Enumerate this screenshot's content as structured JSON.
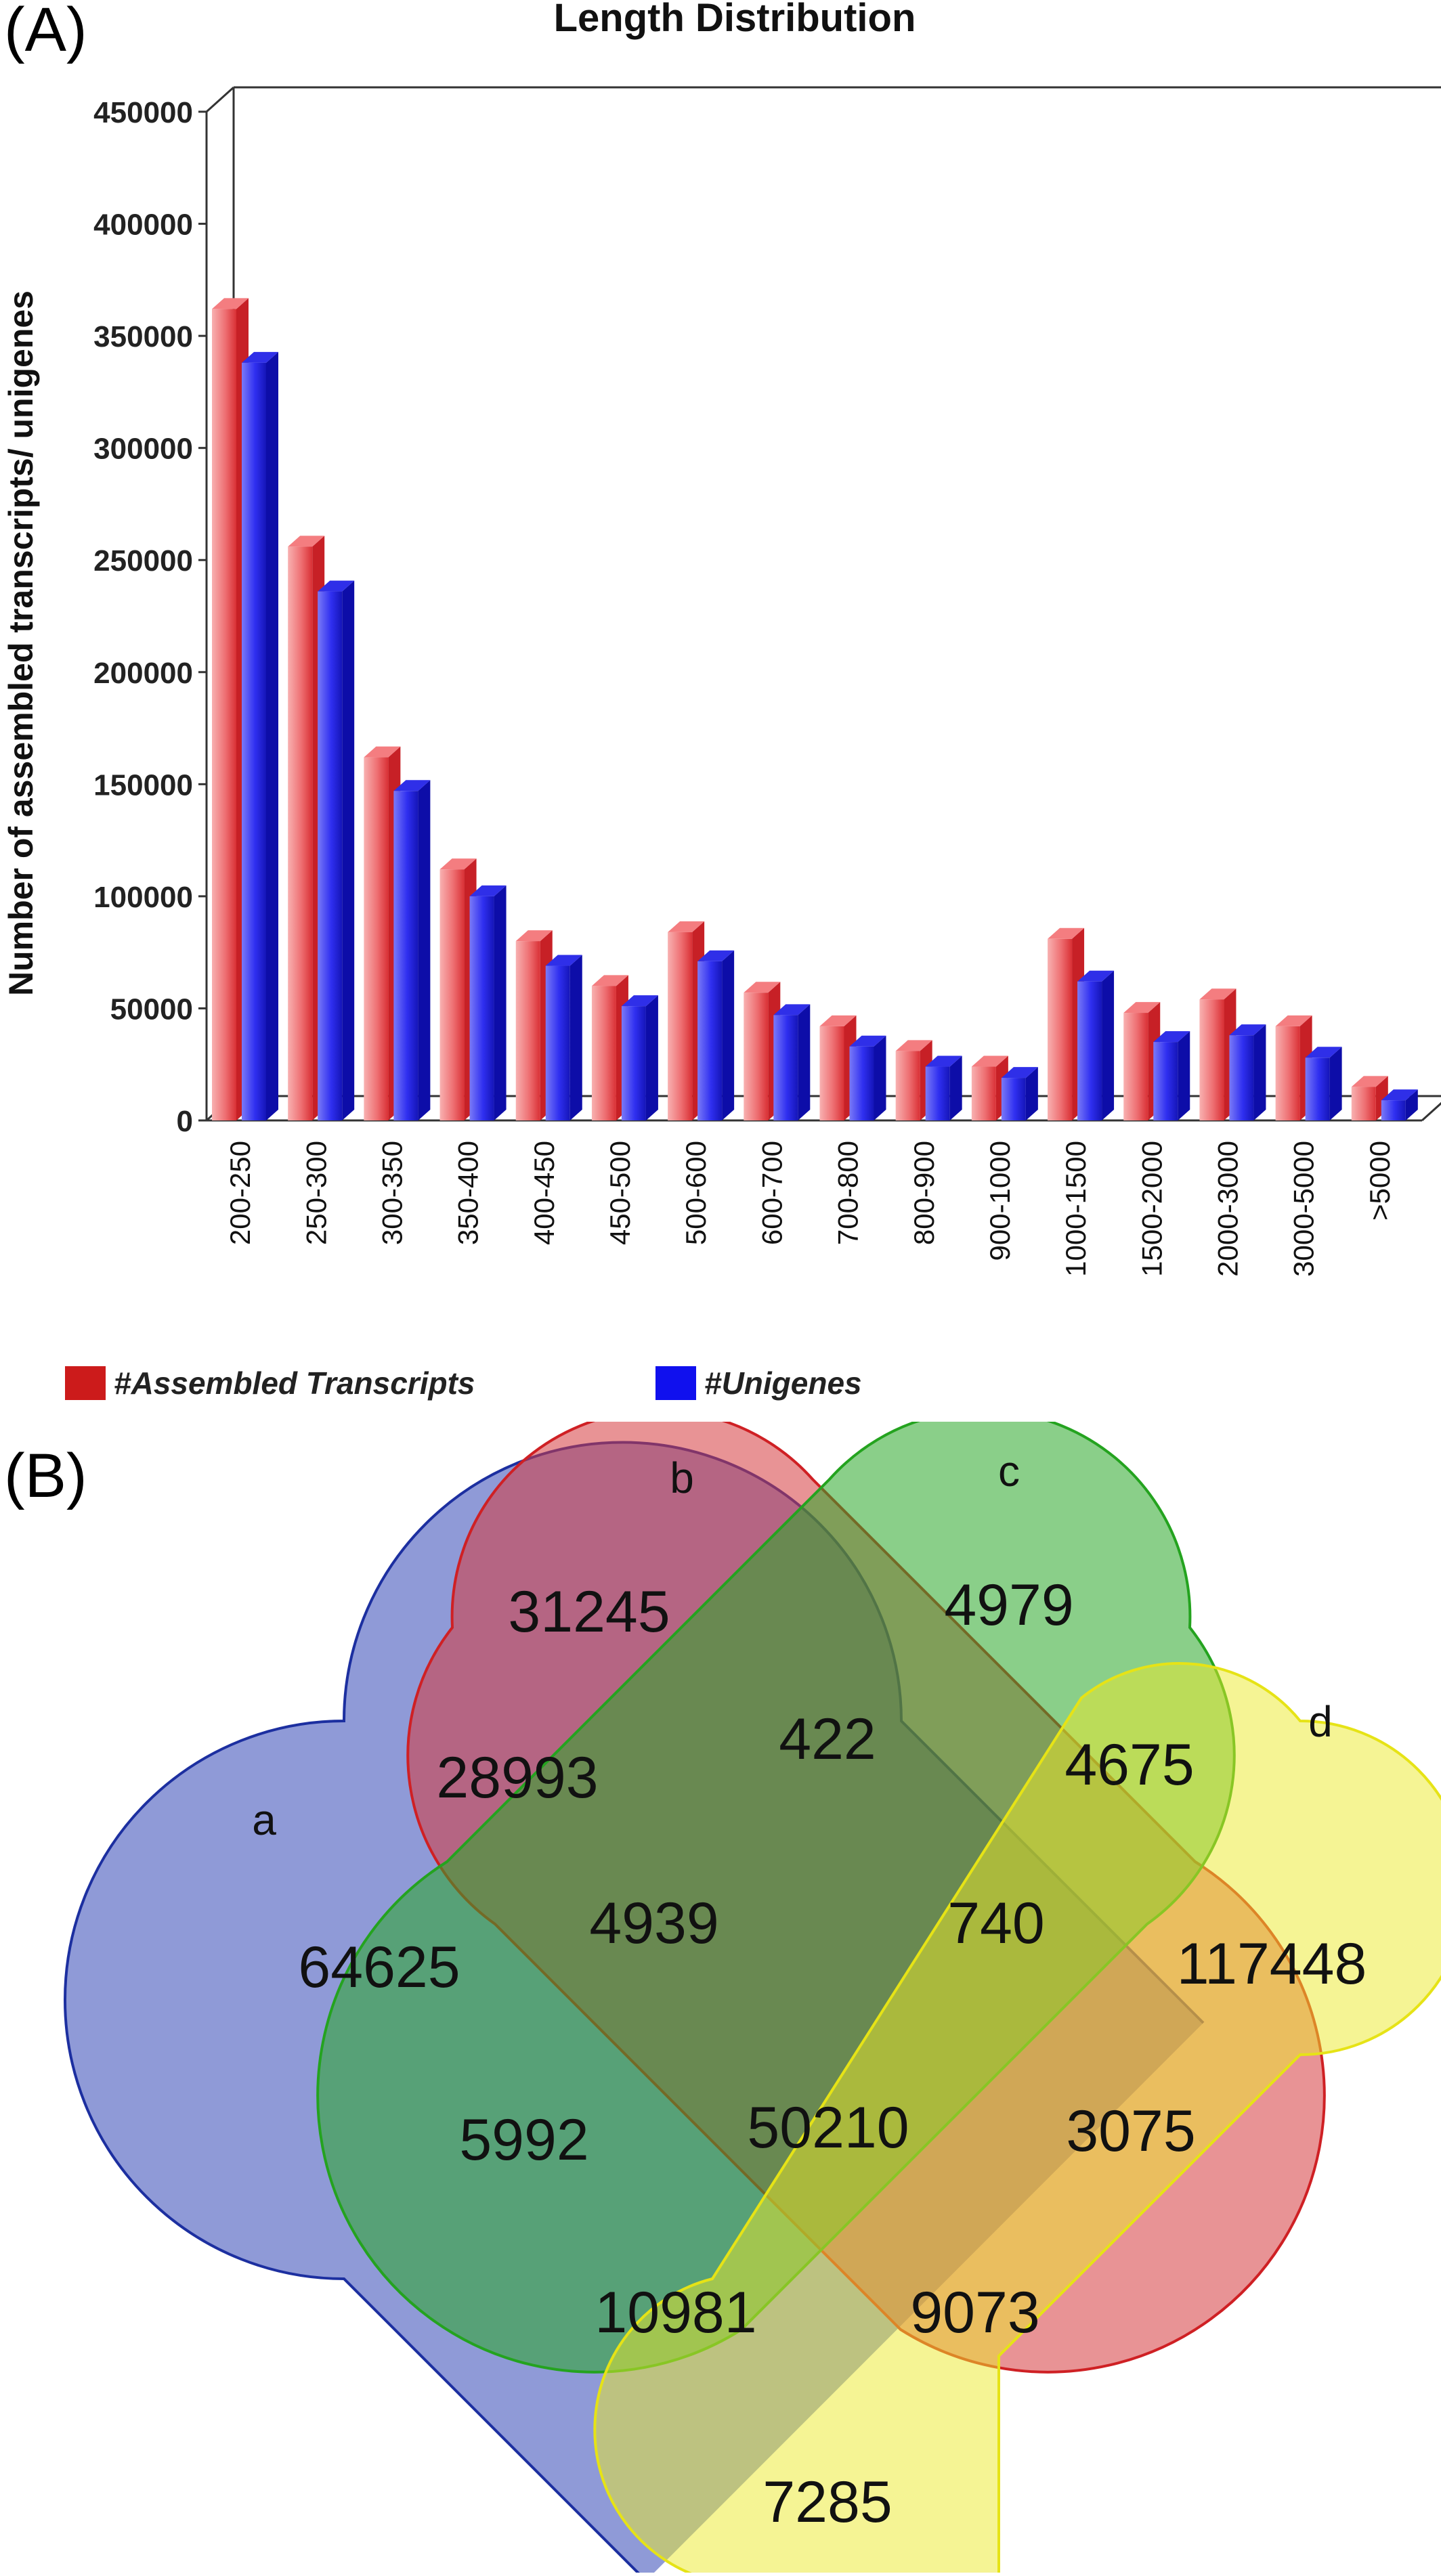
{
  "panel_labels": {
    "a": "(A)",
    "b": "(B)"
  },
  "chart_data": {
    "type": "bar",
    "title": "Length Distribution",
    "xlabel": "",
    "ylabel": "Number of assembled transcripts/ unigenes",
    "ylim": [
      0,
      450000
    ],
    "yticks": [
      0,
      50000,
      100000,
      150000,
      200000,
      250000,
      300000,
      350000,
      400000,
      450000
    ],
    "categories": [
      "200-250",
      "250-300",
      "300-350",
      "350-400",
      "400-450",
      "450-500",
      "500-600",
      "600-700",
      "700-800",
      "800-900",
      "900-1000",
      "1000-1500",
      "1500-2000",
      "2000-3000",
      "3000-5000",
      ">5000"
    ],
    "series": [
      {
        "name": "#Assembled Transcripts",
        "color": "#e8565a",
        "values": [
          362000,
          256000,
          162000,
          112000,
          80000,
          60000,
          84000,
          57000,
          42000,
          31000,
          24000,
          81000,
          48000,
          54000,
          42000,
          15000
        ]
      },
      {
        "name": "#Unigenes",
        "color": "#1a1ae0",
        "values": [
          338000,
          236000,
          147000,
          100000,
          69000,
          51000,
          71000,
          47000,
          33000,
          24000,
          19000,
          62000,
          35000,
          38000,
          28000,
          9000
        ]
      }
    ],
    "legend_position": "bottom",
    "grid": false
  },
  "venn": {
    "sets": [
      {
        "label": "a",
        "color": "#2338a8"
      },
      {
        "label": "b",
        "color": "#d8282e"
      },
      {
        "label": "c",
        "color": "#22a322"
      },
      {
        "label": "d",
        "color": "#ecea2a"
      }
    ],
    "regions": {
      "b_only": "31245",
      "c_only": "4979",
      "ab": "28993",
      "bc": "422",
      "cd": "4675",
      "a_only": "64625",
      "abc": "4939",
      "bcd": "740",
      "d_only": "117448",
      "ac": "5992",
      "abcd": "50210",
      "bd": "3075",
      "acd": "10981",
      "abd": "9073",
      "ad": "7285"
    }
  }
}
